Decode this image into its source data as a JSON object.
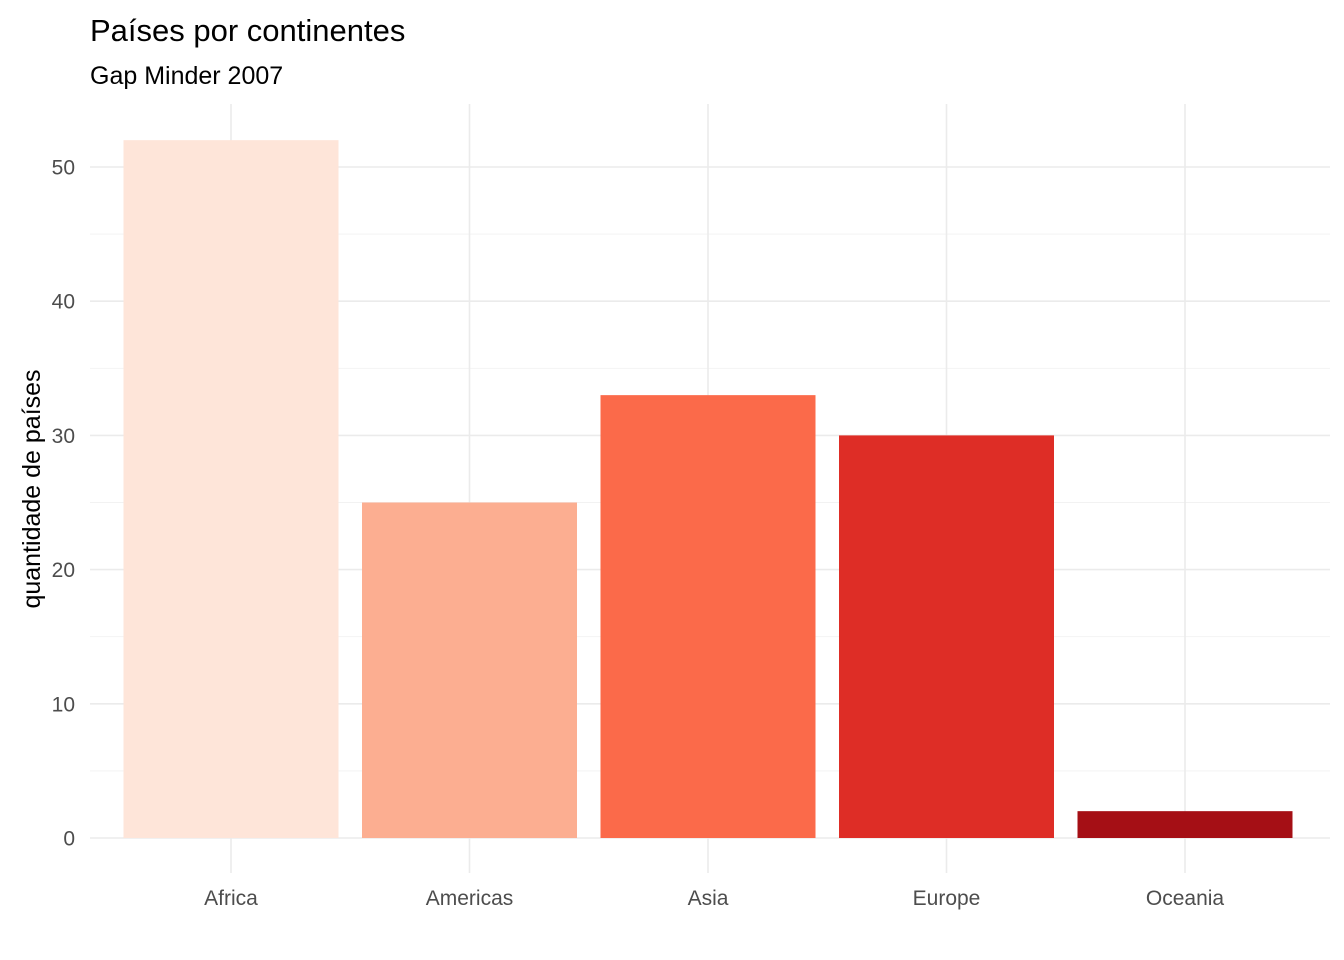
{
  "chart_data": {
    "type": "bar",
    "title": "Países por continentes",
    "subtitle": "Gap Minder 2007",
    "xlabel": "",
    "ylabel": "quantidade de países",
    "categories": [
      "Africa",
      "Americas",
      "Asia",
      "Europe",
      "Oceania"
    ],
    "values": [
      52,
      25,
      33,
      30,
      2
    ],
    "colors": [
      "#fee5d9",
      "#fcae91",
      "#fb6a4a",
      "#de2d26",
      "#a50f15"
    ],
    "ylim": [
      0,
      54.6
    ],
    "yticks": [
      0,
      10,
      20,
      30,
      40,
      50
    ],
    "ytick_labels": [
      "0",
      "10",
      "20",
      "30",
      "40",
      "50"
    ],
    "grid": true,
    "legend": "none"
  }
}
